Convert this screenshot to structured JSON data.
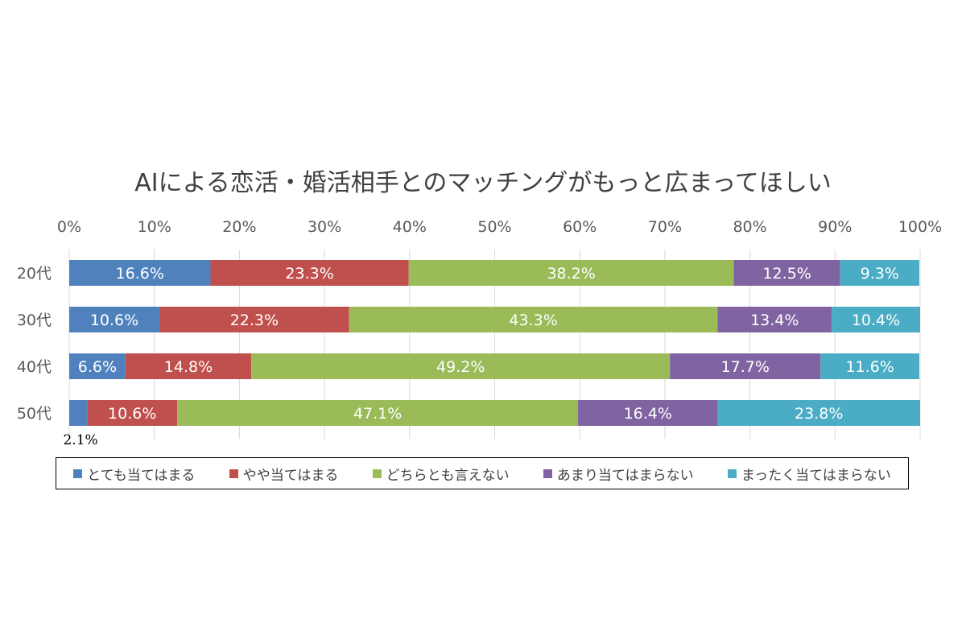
{
  "chart_data": {
    "type": "bar",
    "orientation": "horizontal",
    "stacked": "percent",
    "title": "AIによる恋活・婚活相手とのマッチングがもっと広まってほしい",
    "categories": [
      "20代",
      "30代",
      "40代",
      "50代"
    ],
    "series": [
      {
        "name": "とても当てはまる",
        "color": "#4f81bd",
        "values": [
          16.6,
          10.6,
          6.6,
          2.1
        ],
        "labels": [
          "16.6%",
          "10.6%",
          "6.6%",
          "2.1%"
        ]
      },
      {
        "name": "やや当てはまる",
        "color": "#c0504d",
        "values": [
          23.3,
          22.3,
          14.8,
          10.6
        ],
        "labels": [
          "23.3%",
          "22.3%",
          "14.8%",
          "10.6%"
        ]
      },
      {
        "name": "どちらとも言えない",
        "color": "#9bbb59",
        "values": [
          38.2,
          43.3,
          49.2,
          47.1
        ],
        "labels": [
          "38.2%",
          "43.3%",
          "49.2%",
          "47.1%"
        ]
      },
      {
        "name": "あまり当てはまらない",
        "color": "#8064a2",
        "values": [
          12.5,
          13.4,
          17.7,
          16.4
        ],
        "labels": [
          "12.5%",
          "13.4%",
          "17.7%",
          "16.4%"
        ]
      },
      {
        "name": "まったく当てはまらない",
        "color": "#4bacc6",
        "values": [
          9.3,
          10.4,
          11.6,
          23.8
        ],
        "labels": [
          "9.3%",
          "10.4%",
          "11.6%",
          "23.8%"
        ]
      }
    ],
    "xlim": [
      0,
      100
    ],
    "xticks": [
      "0%",
      "10%",
      "20%",
      "30%",
      "40%",
      "50%",
      "60%",
      "70%",
      "80%",
      "90%",
      "100%"
    ],
    "grid": true,
    "legend": "bottom"
  }
}
